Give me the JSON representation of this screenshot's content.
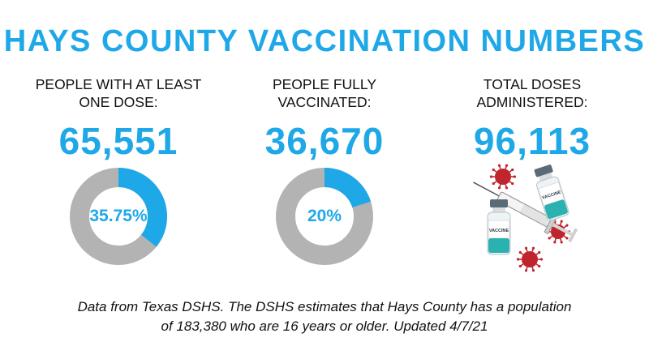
{
  "title": "HAYS COUNTY VACCINATION NUMBERS",
  "stats": [
    {
      "label_line1": "PEOPLE WITH AT LEAST",
      "label_line2": "ONE DOSE:",
      "value": "65,551",
      "percent_text": "35.75%",
      "percent": 35.75
    },
    {
      "label_line1": "PEOPLE FULLY",
      "label_line2": "VACCINATED:",
      "value": "36,670",
      "percent_text": "20%",
      "percent": 20
    },
    {
      "label_line1": "TOTAL DOSES",
      "label_line2": "ADMINISTERED:",
      "value": "96,113",
      "illustration": "vaccine-vials-syringe-virus"
    }
  ],
  "vial_label": "VACCINE",
  "footer_line1": "Data from Texas DSHS. The DSHS estimates that Hays County has a population",
  "footer_line2": "of 183,380 who are 16 years or older. Updated 4/7/21",
  "colors": {
    "accent": "#1fa8e8",
    "ring": "#b3b3b3",
    "text": "#111111",
    "virus": "#c0242c",
    "vial_cap": "#5a6b78",
    "vial_liquid": "#2bb1b0"
  }
}
